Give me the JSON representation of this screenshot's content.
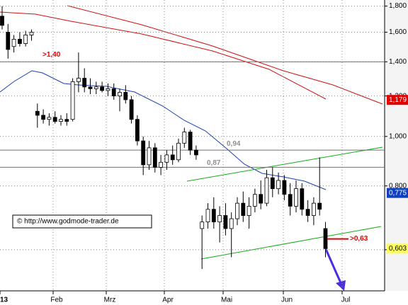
{
  "chart_data": {
    "type": "candlestick",
    "source": "© http://www.godmode-trader.de",
    "categories": [
      "13",
      "Feb",
      "Mrz",
      "Apr",
      "Mai",
      "Jun",
      "Jul"
    ],
    "log_scale": true,
    "grid": true,
    "ylim": [
      0.5,
      1.85
    ],
    "yticks": [
      {
        "value": 1.8,
        "label": "1,800"
      },
      {
        "value": 1.6,
        "label": "1,600"
      },
      {
        "value": 1.4,
        "label": "1,400"
      },
      {
        "value": 1.2,
        "label": "1,200"
      },
      {
        "value": 1.0,
        "label": "1,000"
      },
      {
        "value": 0.8,
        "label": "0,800"
      },
      {
        "value": 0.6,
        "label": "0,600"
      }
    ],
    "candles": {
      "open": [
        1.72,
        1.6,
        1.5,
        1.55,
        1.52,
        1.58,
        1.12,
        1.1,
        1.08,
        1.09,
        1.07,
        1.08,
        1.08,
        1.28,
        1.3,
        1.25,
        1.24,
        1.25,
        1.23,
        1.24,
        1.2,
        1.22,
        1.18,
        1.08,
        0.98,
        0.88,
        0.95,
        0.87,
        0.89,
        0.92,
        0.9,
        0.97,
        1.02,
        0.94,
        0.66,
        0.68,
        0.72,
        0.68,
        0.7,
        0.66,
        0.69,
        0.74,
        0.7,
        0.73,
        0.77,
        0.74,
        0.83,
        0.79,
        0.82,
        0.77,
        0.73,
        0.79,
        0.72,
        0.7,
        0.74,
        0.66
      ],
      "high": [
        1.8,
        1.66,
        1.58,
        1.6,
        1.61,
        1.62,
        1.16,
        1.13,
        1.11,
        1.12,
        1.1,
        1.11,
        1.3,
        1.46,
        1.36,
        1.3,
        1.28,
        1.28,
        1.27,
        1.27,
        1.24,
        1.26,
        1.2,
        1.1,
        1.0,
        0.98,
        0.97,
        0.92,
        0.94,
        0.96,
        0.99,
        1.04,
        1.03,
        0.96,
        0.7,
        0.74,
        0.76,
        0.73,
        0.74,
        0.71,
        0.76,
        0.78,
        0.76,
        0.79,
        0.82,
        0.86,
        0.87,
        0.85,
        0.84,
        0.81,
        0.82,
        0.81,
        0.75,
        0.76,
        0.91,
        0.68
      ],
      "low": [
        1.62,
        1.42,
        1.46,
        1.5,
        1.5,
        1.54,
        1.04,
        1.06,
        1.05,
        1.06,
        1.05,
        1.05,
        1.07,
        1.22,
        1.22,
        1.21,
        1.21,
        1.22,
        1.2,
        1.18,
        1.12,
        1.16,
        1.06,
        0.96,
        0.84,
        0.86,
        0.85,
        0.84,
        0.86,
        0.88,
        0.89,
        0.95,
        0.92,
        0.9,
        0.55,
        0.66,
        0.66,
        0.62,
        0.64,
        0.58,
        0.67,
        0.68,
        0.66,
        0.71,
        0.72,
        0.73,
        0.76,
        0.77,
        0.75,
        0.7,
        0.71,
        0.7,
        0.68,
        0.67,
        0.7,
        0.58
      ],
      "close": [
        1.65,
        1.48,
        1.55,
        1.52,
        1.58,
        1.6,
        1.1,
        1.08,
        1.09,
        1.07,
        1.08,
        1.07,
        1.28,
        1.3,
        1.25,
        1.24,
        1.25,
        1.23,
        1.24,
        1.2,
        1.22,
        1.18,
        1.08,
        0.98,
        0.88,
        0.95,
        0.87,
        0.89,
        0.92,
        0.9,
        0.97,
        1.02,
        0.94,
        0.92,
        0.68,
        0.72,
        0.68,
        0.7,
        0.66,
        0.69,
        0.74,
        0.7,
        0.73,
        0.77,
        0.74,
        0.83,
        0.79,
        0.82,
        0.77,
        0.73,
        0.79,
        0.72,
        0.7,
        0.74,
        0.72,
        0.603
      ]
    },
    "levels": [
      {
        "value": 1.4,
        "label": ">1,40",
        "color": "#e00000"
      },
      {
        "value": 0.94,
        "label": "0,94",
        "color": "#909090"
      },
      {
        "value": 0.87,
        "label": "0,87",
        "color": "#909090"
      }
    ],
    "target": {
      "value": 0.63,
      "label": ">0,63",
      "color": "#e00000"
    },
    "price_labels": [
      {
        "value": 1.179,
        "label": "1,179",
        "color": "#e00000",
        "text_color": "#ffffff"
      },
      {
        "value": 0.775,
        "label": "0,775",
        "color": "#1040c0",
        "text_color": "#ffffff"
      },
      {
        "value": 0.603,
        "label": "0,603",
        "color": "#ffff60",
        "text_color": "#000000"
      }
    ]
  }
}
